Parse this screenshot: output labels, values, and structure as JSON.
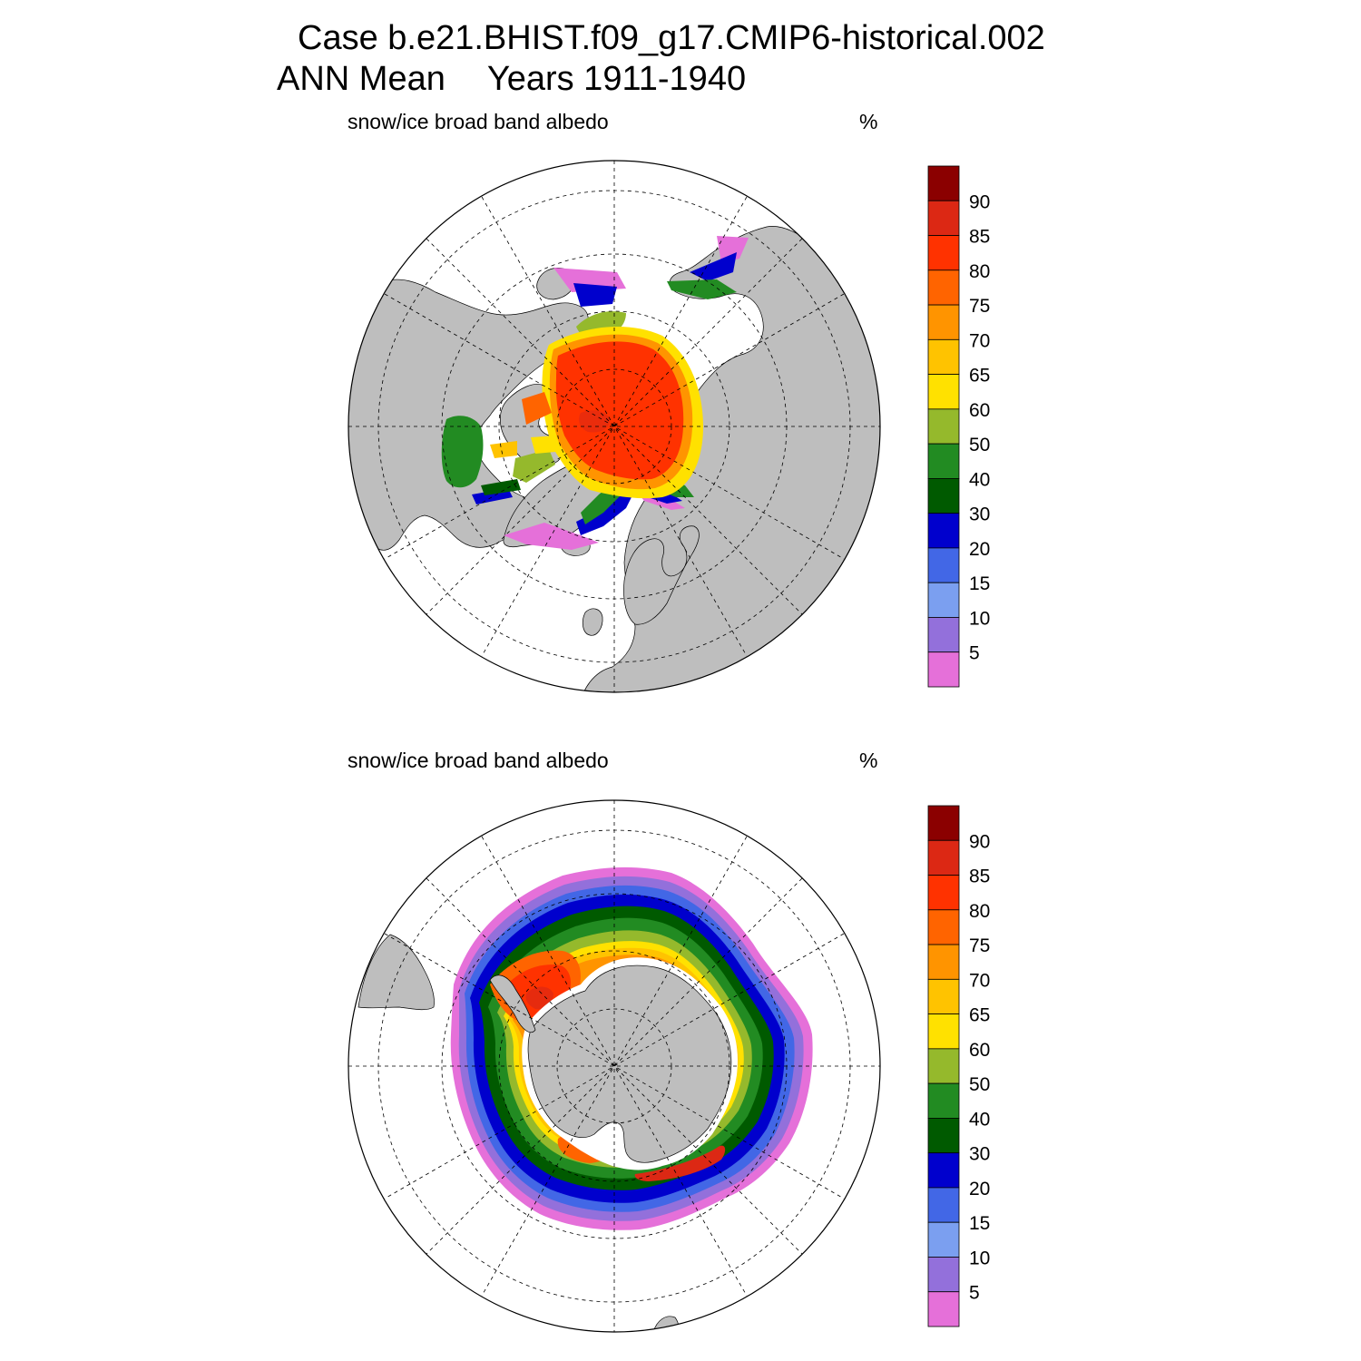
{
  "header": {
    "case_line": "Case b.e21.BHIST.f09_g17.CMIP6-historical.002",
    "season": "ANN Mean",
    "years": "Years 1911-1940"
  },
  "colors": {
    "land": "#bebebe",
    "ocean_open": "#ffffff",
    "grid": "#000000",
    "bins": [
      "#e570d9",
      "#9370db",
      "#7b9ff0",
      "#4267e6",
      "#0000cd",
      "#005a00",
      "#228b22",
      "#95b92c",
      "#ffe100",
      "#ffc300",
      "#ff9400",
      "#ff6400",
      "#ff3200",
      "#dc2814",
      "#8b0000"
    ]
  },
  "panels": [
    {
      "id": "north",
      "hemisphere": "Northern Hemisphere polar stereographic",
      "variable_label": "snow/ice broad band albedo",
      "units": "%",
      "colorbar": {
        "levels": [
          5,
          10,
          15,
          20,
          30,
          40,
          50,
          60,
          65,
          70,
          75,
          80,
          85,
          90
        ],
        "labels": [
          "90",
          "85",
          "80",
          "75",
          "70",
          "65",
          "60",
          "50",
          "40",
          "30",
          "20",
          "15",
          "10",
          "5"
        ]
      }
    },
    {
      "id": "south",
      "hemisphere": "Southern Hemisphere polar stereographic",
      "variable_label": "snow/ice broad band albedo",
      "units": "%",
      "colorbar": {
        "levels": [
          5,
          10,
          15,
          20,
          30,
          40,
          50,
          60,
          65,
          70,
          75,
          80,
          85,
          90
        ],
        "labels": [
          "90",
          "85",
          "80",
          "75",
          "70",
          "65",
          "60",
          "50",
          "40",
          "30",
          "20",
          "15",
          "10",
          "5"
        ]
      }
    }
  ]
}
